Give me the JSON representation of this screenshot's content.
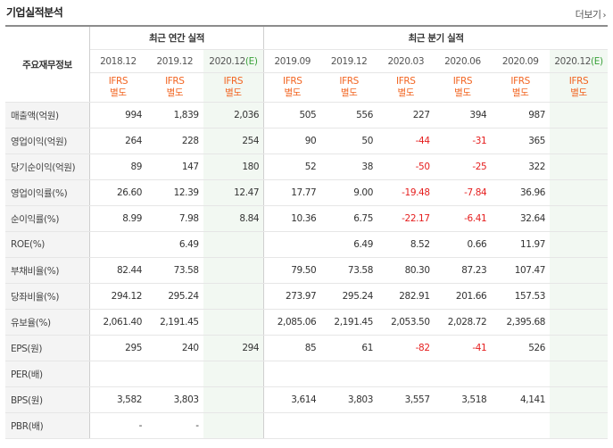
{
  "title": "기업실적분석",
  "more_label": "더보기",
  "header": {
    "row_label": "주요재무정보",
    "annual_label": "최근 연간 실적",
    "quarter_label": "최근 분기 실적",
    "annual_dates": [
      "2018.12",
      "2019.12",
      "2020.12"
    ],
    "quarter_dates": [
      "2019.09",
      "2019.12",
      "2020.03",
      "2020.06",
      "2020.09",
      "2020.12"
    ],
    "estimate_mark": "(E)",
    "ifrs_line1": "IFRS",
    "ifrs_line2": "별도"
  },
  "rows": [
    {
      "label": "매출액(억원)",
      "values": [
        "994",
        "1,839",
        "2,036",
        "505",
        "556",
        "227",
        "394",
        "987",
        ""
      ]
    },
    {
      "label": "영업이익(억원)",
      "values": [
        "264",
        "228",
        "254",
        "90",
        "50",
        "-44",
        "-31",
        "365",
        ""
      ]
    },
    {
      "label": "당기순이익(억원)",
      "values": [
        "89",
        "147",
        "180",
        "52",
        "38",
        "-50",
        "-25",
        "322",
        ""
      ]
    },
    {
      "label": "영업이익률(%)",
      "values": [
        "26.60",
        "12.39",
        "12.47",
        "17.77",
        "9.00",
        "-19.48",
        "-7.84",
        "36.96",
        ""
      ]
    },
    {
      "label": "순이익률(%)",
      "values": [
        "8.99",
        "7.98",
        "8.84",
        "10.36",
        "6.75",
        "-22.17",
        "-6.41",
        "32.64",
        ""
      ]
    },
    {
      "label": "ROE(%)",
      "values": [
        "",
        "6.49",
        "",
        "",
        "6.49",
        "8.52",
        "0.66",
        "11.97",
        ""
      ]
    },
    {
      "label": "부채비율(%)",
      "values": [
        "82.44",
        "73.58",
        "",
        "79.50",
        "73.58",
        "80.30",
        "87.23",
        "107.47",
        ""
      ]
    },
    {
      "label": "당좌비율(%)",
      "values": [
        "294.12",
        "295.24",
        "",
        "273.97",
        "295.24",
        "282.91",
        "201.66",
        "157.53",
        ""
      ]
    },
    {
      "label": "유보율(%)",
      "values": [
        "2,061.40",
        "2,191.45",
        "",
        "2,085.06",
        "2,191.45",
        "2,053.50",
        "2,028.72",
        "2,395.68",
        ""
      ]
    },
    {
      "label": "EPS(원)",
      "values": [
        "295",
        "240",
        "294",
        "85",
        "61",
        "-82",
        "-41",
        "526",
        ""
      ]
    },
    {
      "label": "PER(배)",
      "values": [
        "",
        "",
        "",
        "",
        "",
        "",
        "",
        "",
        ""
      ]
    },
    {
      "label": "BPS(원)",
      "values": [
        "3,582",
        "3,803",
        "",
        "3,614",
        "3,803",
        "3,557",
        "3,518",
        "4,141",
        ""
      ]
    },
    {
      "label": "PBR(배)",
      "values": [
        "-",
        "-",
        "",
        "",
        "",
        "",
        "",
        "",
        ""
      ]
    }
  ]
}
